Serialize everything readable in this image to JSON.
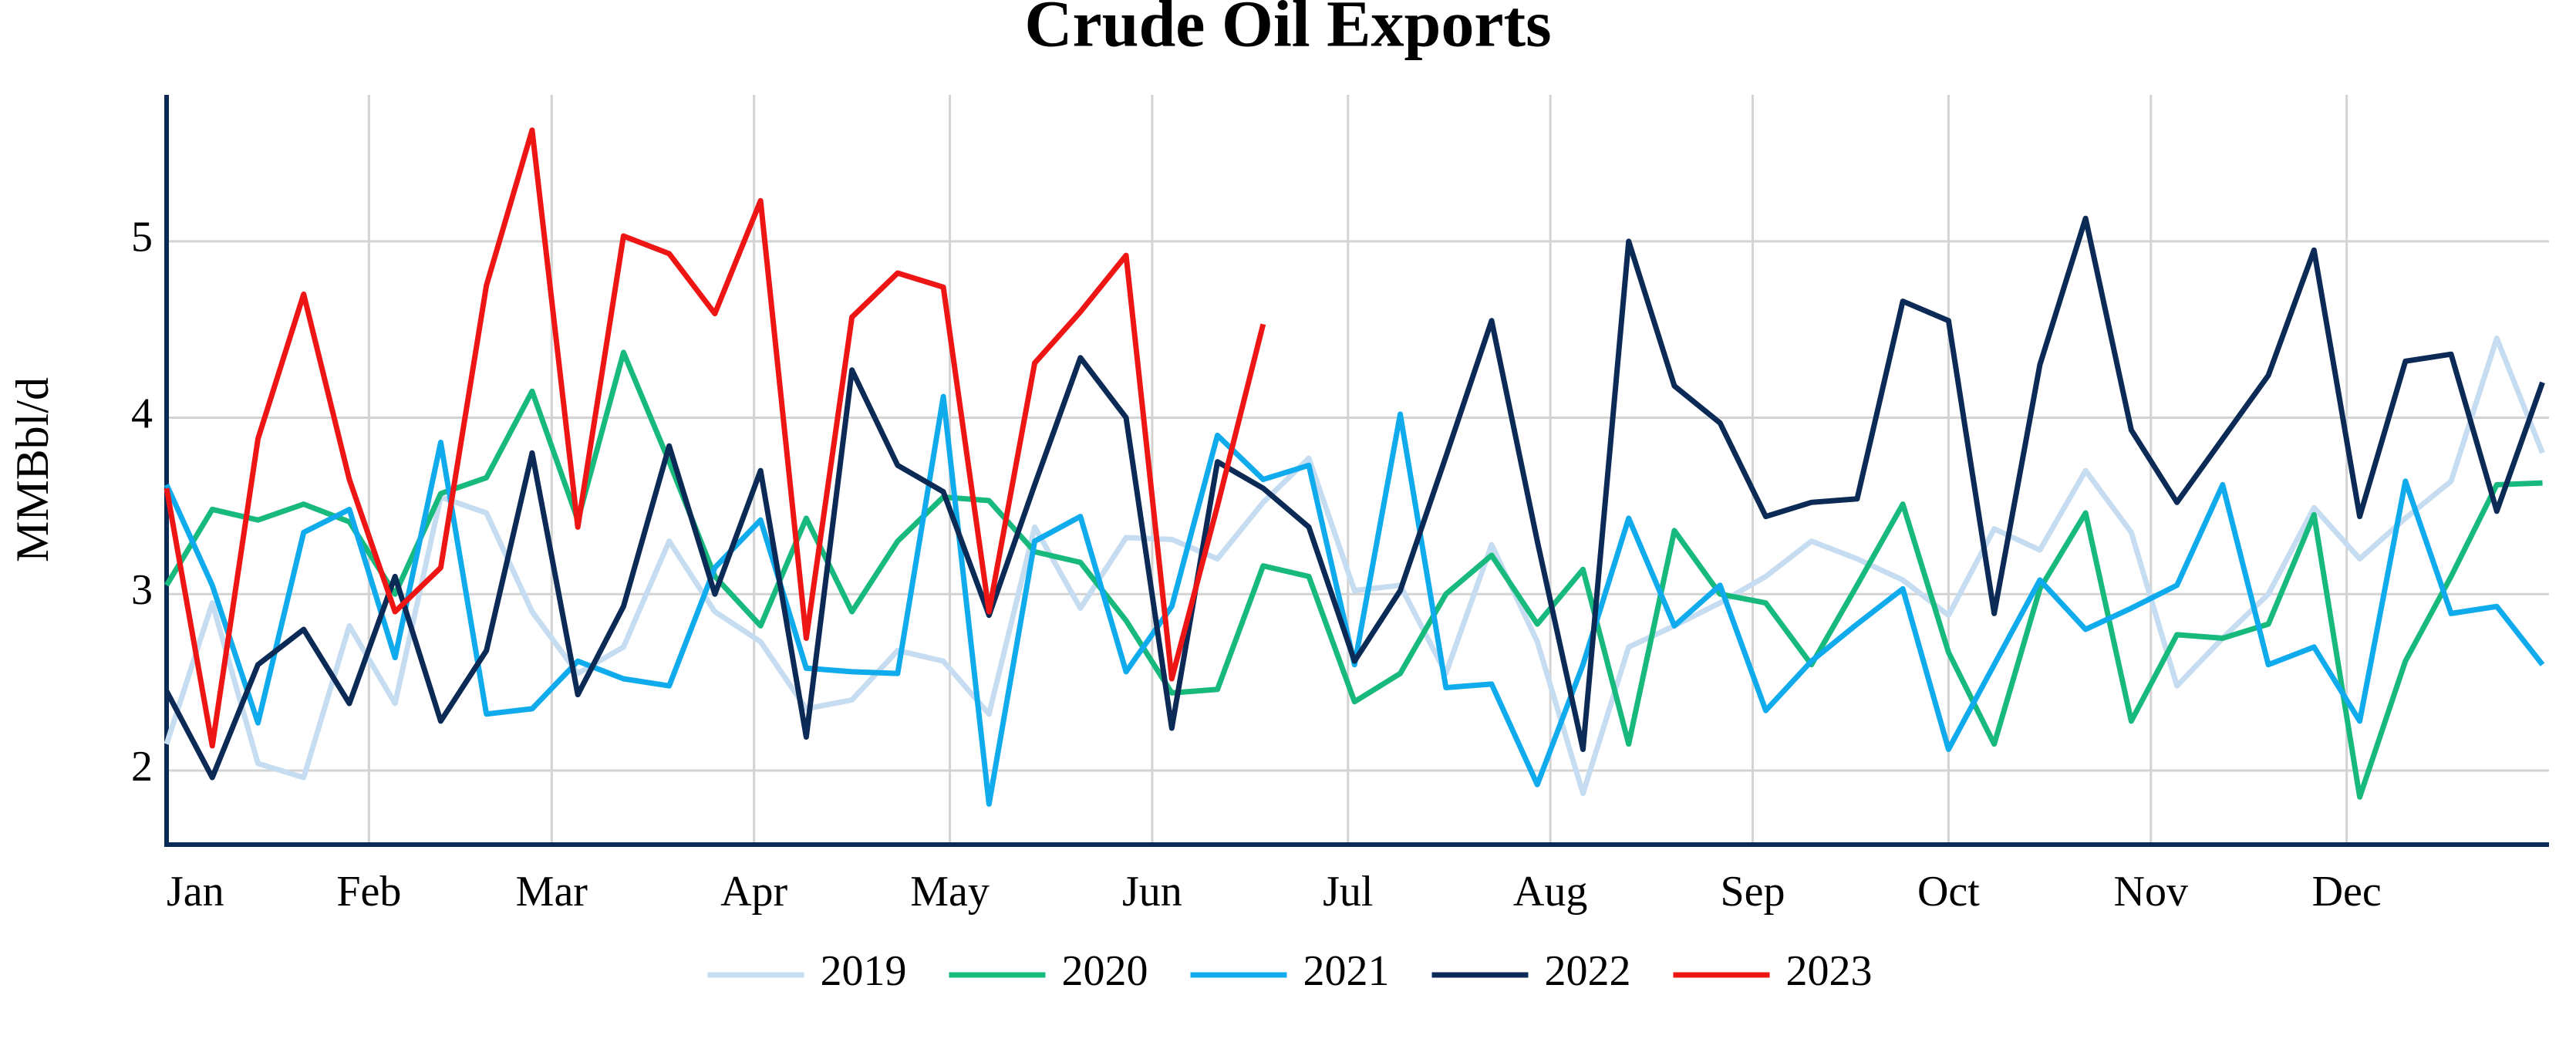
{
  "chart_data": {
    "type": "line",
    "title": "Crude Oil Exports",
    "y_label": "MMBbl/d",
    "x": [
      0,
      7,
      14,
      21,
      28,
      35,
      42,
      49,
      56,
      63,
      70,
      77,
      84,
      91,
      98,
      105,
      112,
      119,
      126,
      133,
      140,
      147,
      154,
      161,
      168,
      175,
      182,
      189,
      196,
      203,
      210,
      217,
      224,
      231,
      238,
      245,
      252,
      259,
      266,
      273,
      280,
      287,
      294,
      301,
      308,
      315,
      322,
      329,
      336,
      343,
      350,
      357,
      364
    ],
    "xlim": [
      0,
      365
    ],
    "xticks": [
      {
        "value": 0,
        "label": "Jan"
      },
      {
        "value": 31,
        "label": "Feb"
      },
      {
        "value": 59,
        "label": "Mar"
      },
      {
        "value": 90,
        "label": "Apr"
      },
      {
        "value": 120,
        "label": "May"
      },
      {
        "value": 151,
        "label": "Jun"
      },
      {
        "value": 181,
        "label": "Jul"
      },
      {
        "value": 212,
        "label": "Aug"
      },
      {
        "value": 243,
        "label": "Sep"
      },
      {
        "value": 273,
        "label": "Oct"
      },
      {
        "value": 304,
        "label": "Nov"
      },
      {
        "value": 334,
        "label": "Dec"
      }
    ],
    "ylim": [
      1.58,
      5.83
    ],
    "yticks": [
      2,
      3,
      4,
      5
    ],
    "grid": true,
    "series": [
      {
        "name": "2019",
        "color": "#c6dcf1",
        "values": [
          2.15,
          2.95,
          2.04,
          1.96,
          2.82,
          2.38,
          3.55,
          3.46,
          2.9,
          2.55,
          2.7,
          3.3,
          2.9,
          2.73,
          2.35,
          2.4,
          2.68,
          2.62,
          2.32,
          3.38,
          2.92,
          3.32,
          3.31,
          3.2,
          3.52,
          3.77,
          3.02,
          3.05,
          2.55,
          3.28,
          2.73,
          1.87,
          2.7,
          2.82,
          2.95,
          3.1,
          3.3,
          3.2,
          3.08,
          2.88,
          3.37,
          3.25,
          3.7,
          3.35,
          2.48,
          2.75,
          3.0,
          3.49,
          3.2,
          3.43,
          3.64,
          4.45,
          3.8
        ]
      },
      {
        "name": "2020",
        "color": "#17b97c",
        "values": [
          3.05,
          3.48,
          3.42,
          3.51,
          3.41,
          3.0,
          3.57,
          3.66,
          4.15,
          3.42,
          4.37,
          3.75,
          3.1,
          2.82,
          3.43,
          2.9,
          3.3,
          3.55,
          3.53,
          3.24,
          3.18,
          2.85,
          2.44,
          2.46,
          3.16,
          3.1,
          2.39,
          2.55,
          3.0,
          3.22,
          2.83,
          3.14,
          2.15,
          3.36,
          3.0,
          2.95,
          2.6,
          3.05,
          3.51,
          2.67,
          2.15,
          3.03,
          3.46,
          2.28,
          2.77,
          2.75,
          2.83,
          3.45,
          1.85,
          2.62,
          3.1,
          3.62,
          3.63
        ]
      },
      {
        "name": "2021",
        "color": "#0fabec",
        "values": [
          3.62,
          3.05,
          2.27,
          3.35,
          3.48,
          2.64,
          3.86,
          2.32,
          2.35,
          2.62,
          2.52,
          2.48,
          3.15,
          3.42,
          2.58,
          2.56,
          2.55,
          4.12,
          1.81,
          3.3,
          3.44,
          2.56,
          2.93,
          3.9,
          3.65,
          3.73,
          2.6,
          4.02,
          2.47,
          2.49,
          1.92,
          2.6,
          3.43,
          2.82,
          3.05,
          2.34,
          2.62,
          2.83,
          3.03,
          2.12,
          2.6,
          3.08,
          2.8,
          2.92,
          3.05,
          3.62,
          2.6,
          2.7,
          2.28,
          3.64,
          2.89,
          2.93,
          2.6
        ]
      },
      {
        "name": "2022",
        "color": "#0c2a56",
        "values": [
          2.45,
          1.96,
          2.6,
          2.8,
          2.38,
          3.1,
          2.28,
          2.68,
          3.8,
          2.43,
          2.93,
          3.84,
          3.0,
          3.7,
          2.19,
          4.27,
          3.73,
          3.58,
          2.88,
          3.62,
          4.34,
          4.0,
          2.24,
          3.75,
          3.6,
          3.38,
          2.62,
          3.02,
          3.78,
          4.55,
          3.3,
          2.12,
          5.0,
          4.18,
          3.97,
          3.44,
          3.52,
          3.54,
          4.66,
          4.55,
          2.89,
          4.3,
          5.13,
          3.93,
          3.52,
          3.88,
          4.24,
          4.95,
          3.44,
          4.32,
          4.36,
          3.47,
          4.2
        ]
      },
      {
        "name": "2023",
        "color": "#ee1515",
        "values": [
          3.6,
          2.14,
          3.88,
          4.7,
          3.65,
          2.9,
          3.15,
          4.75,
          5.63,
          3.38,
          5.03,
          4.93,
          4.59,
          5.23,
          2.75,
          4.57,
          4.82,
          4.74,
          2.9,
          4.31,
          4.6,
          4.92,
          2.52,
          3.5,
          4.53,
          null,
          null,
          null,
          null,
          null,
          null,
          null,
          null,
          null,
          null,
          null,
          null,
          null,
          null,
          null,
          null,
          null,
          null,
          null,
          null,
          null,
          null,
          null,
          null,
          null,
          null,
          null,
          null
        ]
      }
    ]
  }
}
